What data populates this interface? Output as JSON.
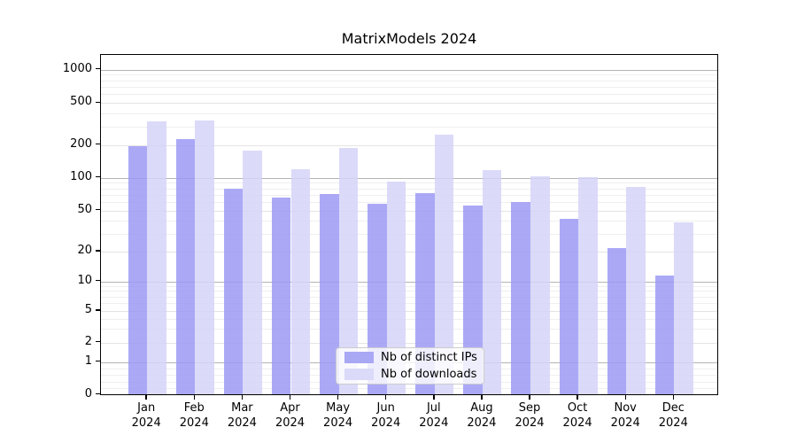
{
  "title": "MatrixModels 2024",
  "legend": {
    "items": [
      {
        "label": "Nb of distinct IPs",
        "color": "#a9a8f4"
      },
      {
        "label": "Nb of downloads",
        "color": "#dbdaf9"
      }
    ]
  },
  "chart_data": {
    "type": "bar",
    "title": "MatrixModels 2024",
    "categories": [
      "Jan",
      "Feb",
      "Mar",
      "Apr",
      "May",
      "Jun",
      "Jul",
      "Aug",
      "Sep",
      "Oct",
      "Nov",
      "Dec"
    ],
    "x_tick_second_line": "2024",
    "series": [
      {
        "name": "Nb of distinct IPs",
        "color": "#9c9af4",
        "values": [
          188,
          218,
          76,
          63,
          68,
          56,
          70,
          54,
          58,
          40,
          21,
          11
        ]
      },
      {
        "name": "Nb of downloads",
        "color": "#d5d4f8",
        "values": [
          320,
          328,
          170,
          115,
          182,
          88,
          242,
          114,
          100,
          97,
          80,
          37
        ]
      }
    ],
    "yscale": "symlog",
    "y_ticks": [
      0,
      1,
      2,
      5,
      10,
      20,
      50,
      100,
      200,
      500,
      1000
    ],
    "ylim": [
      0,
      1200
    ],
    "xlabel": "",
    "ylabel": "",
    "grid": true,
    "legend_position": "lower center"
  },
  "colors": {
    "background": "#ffffff",
    "axis_spine": "#000000",
    "grid_power10": "#b4b4b4",
    "grid_labeled": "#e4e4e4",
    "grid_minor": "#efefef",
    "bar_ips": "#9c9af4",
    "bar_downloads": "#d5d4f8",
    "bar_alpha": "0.85"
  }
}
